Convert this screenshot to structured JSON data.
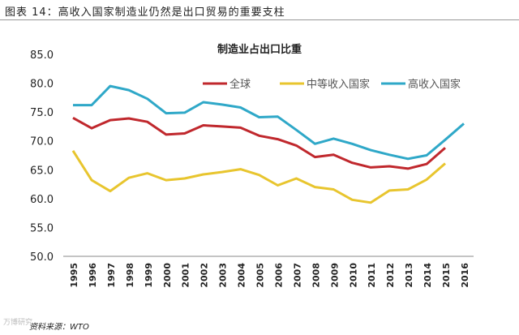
{
  "figure_title": "图表 14：高收入国家制造业仍然是出口贸易的重要支柱",
  "source": "资料来源：WTO",
  "watermark": "万博研究",
  "chart_data": {
    "type": "line",
    "title": "制造业占出口比重",
    "xlabel": "",
    "ylabel": "",
    "ylim": [
      50,
      85
    ],
    "yticks": [
      "50.0",
      "55.0",
      "60.0",
      "65.0",
      "70.0",
      "75.0",
      "80.0",
      "85.0"
    ],
    "x": [
      "1995",
      "1996",
      "1997",
      "1998",
      "1999",
      "2000",
      "2001",
      "2002",
      "2003",
      "2004",
      "2005",
      "2006",
      "2007",
      "2008",
      "2009",
      "2010",
      "2011",
      "2012",
      "2013",
      "2014",
      "2015",
      "2016"
    ],
    "legend_position": "top",
    "series": [
      {
        "name": "全球",
        "color": "#c0282d",
        "values": [
          74.0,
          72.2,
          73.6,
          73.9,
          73.3,
          71.1,
          71.3,
          72.7,
          72.5,
          72.3,
          70.9,
          70.3,
          69.2,
          67.2,
          67.6,
          66.2,
          65.4,
          65.6,
          65.2,
          66.0,
          68.8,
          null
        ]
      },
      {
        "name": "中等收入国家",
        "color": "#e8c52e",
        "values": [
          68.3,
          63.2,
          61.3,
          63.6,
          64.4,
          63.2,
          63.5,
          64.2,
          64.6,
          65.1,
          64.1,
          62.3,
          63.5,
          62.0,
          61.6,
          59.8,
          59.3,
          61.4,
          61.6,
          63.3,
          66.1,
          null
        ]
      },
      {
        "name": "高收入国家",
        "color": "#2fa8c8",
        "values": [
          76.2,
          76.2,
          79.5,
          78.8,
          77.3,
          74.8,
          74.9,
          76.7,
          76.3,
          75.8,
          74.1,
          74.2,
          71.9,
          69.5,
          70.4,
          69.5,
          68.4,
          67.6,
          66.9,
          67.5,
          70.2,
          73.0
        ]
      }
    ]
  }
}
